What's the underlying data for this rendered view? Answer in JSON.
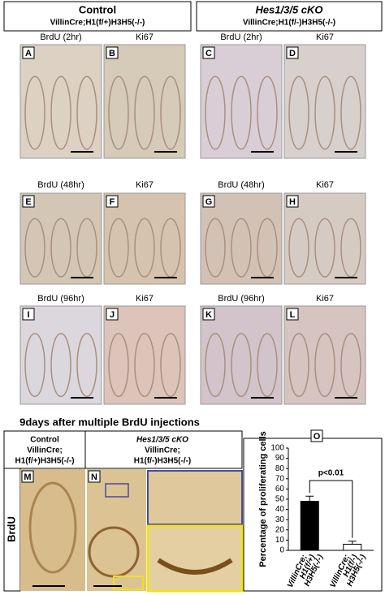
{
  "headers": {
    "control": {
      "title": "Control",
      "genotype": "VillinCre;H1(f/+)H3H5(-/-)"
    },
    "cko": {
      "title": "Hes1/3/5 cKO",
      "genotype": "VillinCre;H1(f/-)H3H5(-/-)"
    }
  },
  "panels": [
    {
      "label": "A",
      "stain": "BrdU (2hr)"
    },
    {
      "label": "B",
      "stain": "Ki67"
    },
    {
      "label": "C",
      "stain": "BrdU (2hr)"
    },
    {
      "label": "D",
      "stain": "Ki67"
    },
    {
      "label": "E",
      "stain": "BrdU (48hr)"
    },
    {
      "label": "F",
      "stain": "Ki67"
    },
    {
      "label": "G",
      "stain": "BrdU (48hr)"
    },
    {
      "label": "H",
      "stain": "Ki67"
    },
    {
      "label": "I",
      "stain": "BrdU (96hr)"
    },
    {
      "label": "J",
      "stain": "Ki67"
    },
    {
      "label": "K",
      "stain": "BrdU (96hr)"
    },
    {
      "label": "L",
      "stain": "Ki67"
    }
  ],
  "section_title": "9days after multiple BrdU injections",
  "lower_headers": {
    "control": [
      "Control",
      "VillinCre;",
      "H1(f/+)H3H5(-/-)"
    ],
    "cko": [
      "Hes1/3/5 cKO",
      "VillinCre;",
      "H1(f/-)H3H5(-/-)"
    ]
  },
  "row_label": "BrdU",
  "lower_panel_labels": [
    "M",
    "N",
    "O"
  ],
  "chart_data": {
    "type": "bar",
    "ylabel": "Percentage of proliferating cells",
    "categories": [
      [
        "VillinCre;",
        "H1(f/+)",
        "H3H5(-/-)"
      ],
      [
        "VillinCre;",
        "H1(f/-)",
        "H3H5(-/-)"
      ]
    ],
    "values": [
      48,
      6
    ],
    "errors": [
      5,
      3
    ],
    "colors": [
      "#000000",
      "#ffffff"
    ],
    "annotation": "p<0.01",
    "ylim": [
      0,
      100
    ],
    "yticks": [
      0,
      10,
      20,
      30,
      40,
      50,
      60,
      70,
      80,
      90,
      100
    ]
  }
}
